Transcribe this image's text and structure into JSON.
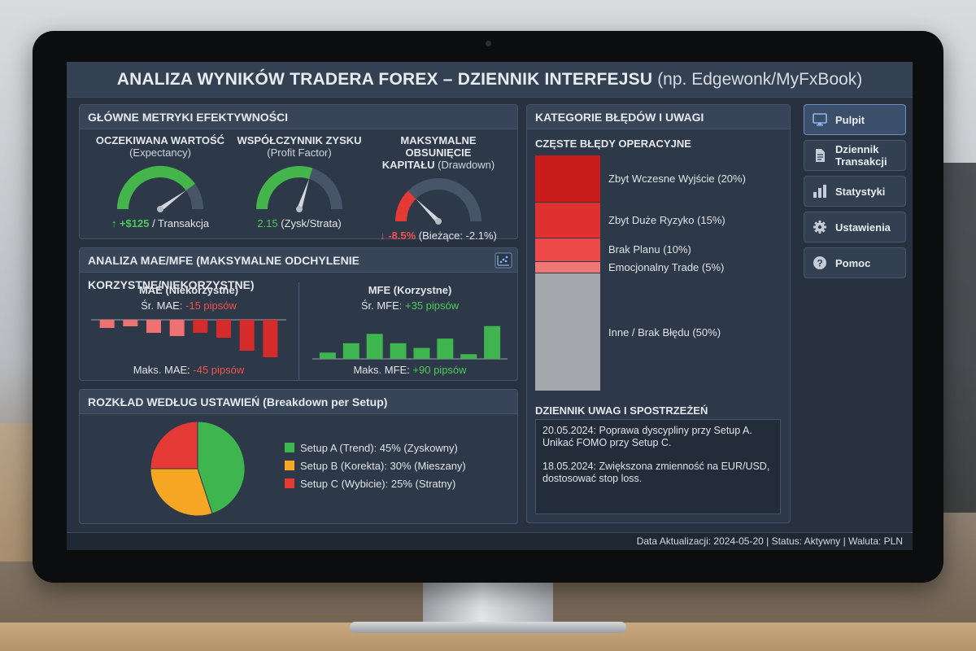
{
  "header": {
    "title": "ANALIZA WYNIKÓW TRADERA FOREX – DZIENNIK INTERFEJSU",
    "subtitle": "(np. Edgewonk/MyFxBook)"
  },
  "metrics_panel": {
    "title": "GŁÓWNE METRYKI EFEKTYWNOŚCI",
    "items": [
      {
        "title": "OCZEKIWANA WARTOŚĆ",
        "sub": "(Expectancy)",
        "value": "↑ +$125",
        "value_rest": " / Transakcja",
        "level": 0.8,
        "color": "#43b54a"
      },
      {
        "title": "WSPÓŁCZYNNIK ZYSKU",
        "sub": "(Profit Factor)",
        "value": "2.15",
        "value_rest": " (Zysk/Strata)",
        "level": 0.6,
        "color": "#43b54a"
      },
      {
        "title": "MAKSYMALNE OBSUNIĘCIE",
        "title2": "KAPITAŁU",
        "sub": "(Drawdown)",
        "value": "↓ -8.5%",
        "value_rest": " (Bieżące: -2.1%)",
        "level": 0.25,
        "color": "#e53935"
      }
    ]
  },
  "mae_panel": {
    "title": "ANALIZA MAE/MFE (MAKSYMALNE ODCHYLENIE KORZYSTNE/NIEKORZYSTNE)",
    "mae": {
      "title": "MAE (Niekorzystne)",
      "avg_label": "Śr. MAE: ",
      "avg_value": "-15 pipsów",
      "max_label": "Maks. MAE: ",
      "max_value": "-45 pipsów"
    },
    "mfe": {
      "title": "MFE (Korzystne)",
      "avg_label": "Śr. MFE: ",
      "avg_value": "+35 pipsów",
      "max_label": "Maks. MFE: ",
      "max_value": "+90 pipsów"
    }
  },
  "chart_data": [
    {
      "type": "bar",
      "title": "MAE (Niekorzystne)",
      "values": [
        -5,
        -4,
        -8,
        -10,
        -8,
        -11,
        -19,
        -23
      ],
      "color_light": "#f07171",
      "color_dark": "#d62b2b",
      "ylim": [
        -25,
        0
      ]
    },
    {
      "type": "bar",
      "title": "MFE (Korzystne)",
      "values": [
        4,
        10,
        16,
        10,
        7,
        13,
        3,
        21
      ],
      "color": "#3fb54f",
      "ylim": [
        0,
        25
      ]
    },
    {
      "type": "pie",
      "title": "ROZKŁAD WEDŁUG USTAWIEŃ (Breakdown per Setup)",
      "slices": [
        {
          "label": "Setup A (Trend): 45% (Zyskowny)",
          "value": 45,
          "color": "#3fb54f"
        },
        {
          "label": "Setup B (Korekta): 30% (Mieszany)",
          "value": 30,
          "color": "#f5a623"
        },
        {
          "label": "Setup C (Wybicie): 25% (Stratny)",
          "value": 25,
          "color": "#e53935"
        }
      ]
    },
    {
      "type": "bar",
      "title": "CZĘSTE BŁĘDY OPERACYJNE",
      "categories": [
        "Zbyt Wczesne Wyjście (20%)",
        "Zbyt Duże Ryzyko (15%)",
        "Brak Planu (10%)",
        "Emocjonalny Trade (5%)",
        "Inne / Brak Błędu (50%)"
      ],
      "values": [
        20,
        15,
        10,
        5,
        50
      ],
      "colors": [
        "#c91c1c",
        "#e03131",
        "#ec4848",
        "#f07777",
        "#a4a7ab"
      ]
    }
  ],
  "setup_panel": {
    "title": "ROZKŁAD WEDŁUG USTAWIEŃ (Breakdown per Setup)"
  },
  "errors_panel": {
    "title": "KATEGORIE BŁĘDÓW I UWAGI",
    "subtitle": "CZĘSTE BŁĘDY OPERACYJNE",
    "notes_title": "DZIENNIK UWAG I SPOSTRZEŻEŃ",
    "notes": [
      "20.05.2024: Poprawa dyscypliny przy Setup A. Unikać FOMO przy Setup C.",
      "18.05.2024: Zwiększona zmienność na EUR/USD, dostosować stop loss."
    ]
  },
  "nav": {
    "items": [
      {
        "label": "Pulpit",
        "icon": "monitor-icon"
      },
      {
        "label": "Dziennik Transakcji",
        "icon": "document-icon"
      },
      {
        "label": "Statystyki",
        "icon": "bar-chart-icon"
      },
      {
        "label": "Ustawienia",
        "icon": "gear-icon"
      },
      {
        "label": "Pomoc",
        "icon": "help-icon"
      }
    ]
  },
  "footer": {
    "text": "Data Aktualizacji: 2024-05-20 | Status: Aktywny | Waluta: PLN"
  }
}
